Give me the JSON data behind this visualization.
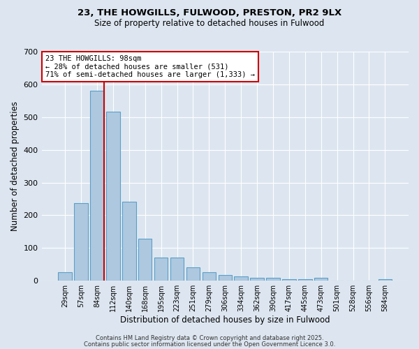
{
  "title_line1": "23, THE HOWGILLS, FULWOOD, PRESTON, PR2 9LX",
  "title_line2": "Size of property relative to detached houses in Fulwood",
  "xlabel": "Distribution of detached houses by size in Fulwood",
  "ylabel": "Number of detached properties",
  "categories": [
    "29sqm",
    "57sqm",
    "84sqm",
    "112sqm",
    "140sqm",
    "168sqm",
    "195sqm",
    "223sqm",
    "251sqm",
    "279sqm",
    "306sqm",
    "334sqm",
    "362sqm",
    "390sqm",
    "417sqm",
    "445sqm",
    "473sqm",
    "501sqm",
    "528sqm",
    "556sqm",
    "584sqm"
  ],
  "values": [
    25,
    237,
    580,
    517,
    242,
    128,
    70,
    70,
    40,
    25,
    18,
    14,
    10,
    8,
    5,
    5,
    8,
    0,
    0,
    0,
    5
  ],
  "bar_color": "#aec8e0",
  "bar_edge_color": "#5a9fc8",
  "background_color": "#dde6f0",
  "grid_color": "#ffffff",
  "vline_color": "#cc0000",
  "annotation_text": "23 THE HOWGILLS: 98sqm\n← 28% of detached houses are smaller (531)\n71% of semi-detached houses are larger (1,333) →",
  "annotation_box_color": "#cc0000",
  "ylim": [
    0,
    700
  ],
  "yticks": [
    0,
    100,
    200,
    300,
    400,
    500,
    600,
    700
  ],
  "footer_line1": "Contains HM Land Registry data © Crown copyright and database right 2025.",
  "footer_line2": "Contains public sector information licensed under the Open Government Licence 3.0."
}
